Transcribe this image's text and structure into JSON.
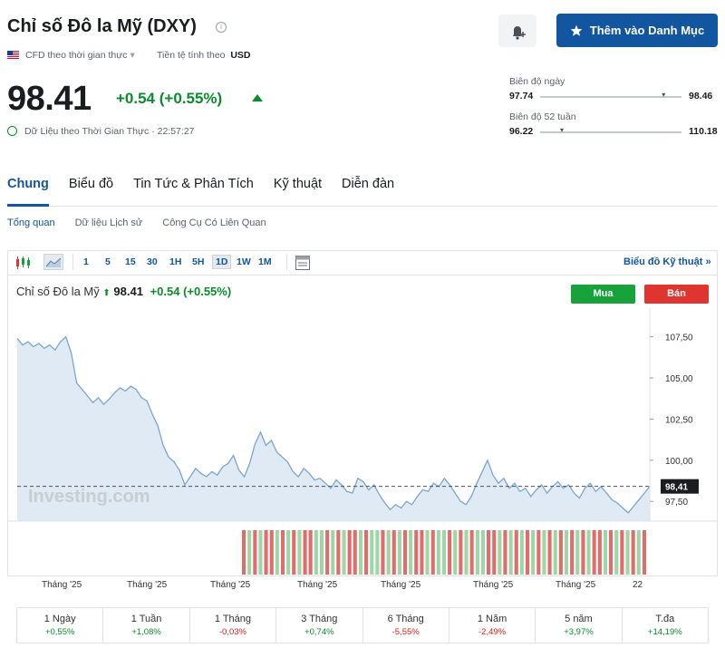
{
  "header": {
    "title": "Chỉ số Đô la Mỹ (DXY)",
    "info_icon": "info-icon",
    "alert_icon": "bell-plus-icon",
    "watchlist_label": "Thêm vào Danh Mục",
    "data_source": "CFD theo thời gian thực",
    "currency_label": "Tiền tệ tính theo",
    "currency": "USD"
  },
  "quote": {
    "price": "98.41",
    "change": "+0.54 (+0.55%)",
    "realtime_label": "Dữ Liệu theo Thời Gian Thực · 22:57:27"
  },
  "ranges": {
    "day_label": "Biên độ ngày",
    "day_low": "97.74",
    "day_high": "98.46",
    "day_position": 0.88,
    "week52_label": "Biên độ 52 tuần",
    "week52_low": "96.22",
    "week52_high": "110.18",
    "week52_position": 0.16
  },
  "tabs": [
    "Chung",
    "Biểu đồ",
    "Tin Tức & Phân Tích",
    "Kỹ thuật",
    "Diễn đàn"
  ],
  "subtabs": [
    "Tổng quan",
    "Dữ liệu Lịch sử",
    "Công Cụ Có Liên Quan"
  ],
  "chart_toolbar": {
    "timeframes": [
      "1",
      "5",
      "15",
      "30",
      "1H",
      "5H",
      "1D",
      "1W",
      "1M"
    ],
    "selected": "1D",
    "tech_chart_link": "Biểu đồ Kỹ thuật »"
  },
  "chart_header": {
    "name": "Chỉ số Đô la Mỹ",
    "price": "98.41",
    "change": "+0.54 (+0.55%)",
    "buy_label": "Mua",
    "sell_label": "Bán",
    "watermark": "Investing.com"
  },
  "chart_data": {
    "type": "area",
    "ylim": [
      96.3,
      108.8
    ],
    "yticks": [
      "107,50",
      "105,00",
      "102,50",
      "100,00",
      "97,50"
    ],
    "last_label": "98,41",
    "last_value": 98.41,
    "xlabels": [
      "Tháng '25",
      "Tháng '25",
      "Tháng '25",
      "Tháng '25",
      "Tháng '25",
      "Tháng '25",
      "Tháng '25",
      "22"
    ],
    "values": [
      107.4,
      107.0,
      107.2,
      106.9,
      107.1,
      106.8,
      107.0,
      106.7,
      107.2,
      107.5,
      106.5,
      104.7,
      104.3,
      103.9,
      103.5,
      103.8,
      103.4,
      103.7,
      104.1,
      104.4,
      104.2,
      104.5,
      104.3,
      103.8,
      103.6,
      102.8,
      102.1,
      100.9,
      100.2,
      99.9,
      99.4,
      98.5,
      99.0,
      99.5,
      99.2,
      99.0,
      99.3,
      99.1,
      99.6,
      99.8,
      100.3,
      99.4,
      99.0,
      99.8,
      101.0,
      101.7,
      100.9,
      101.2,
      100.5,
      100.2,
      99.9,
      99.3,
      99.0,
      99.5,
      99.2,
      98.8,
      98.9,
      98.6,
      98.3,
      98.8,
      98.5,
      98.1,
      98.0,
      98.9,
      98.7,
      98.2,
      98.5,
      97.9,
      97.4,
      97.0,
      97.3,
      97.1,
      97.5,
      97.3,
      97.8,
      98.2,
      98.1,
      98.6,
      98.4,
      98.9,
      98.5,
      98.0,
      97.5,
      97.3,
      97.8,
      98.6,
      99.3,
      100.0,
      99.1,
      98.6,
      98.9,
      98.3,
      98.6,
      98.1,
      98.3,
      97.8,
      98.2,
      98.5,
      98.0,
      98.4,
      98.7,
      98.3,
      98.5,
      98.0,
      97.7,
      98.3,
      98.6,
      98.1,
      98.4,
      98.0,
      97.6,
      97.4,
      97.1,
      96.8,
      97.2,
      97.6,
      98.0,
      98.41
    ],
    "volume_pattern": [
      "r",
      "g",
      "r",
      "g",
      "r",
      "r",
      "g",
      "r",
      "g",
      "r",
      "g",
      "r",
      "r",
      "g",
      "g",
      "r",
      "g",
      "r",
      "g",
      "r",
      "r",
      "g",
      "r",
      "g",
      "g",
      "r",
      "g",
      "r",
      "g",
      "r",
      "g",
      "r",
      "r",
      "g",
      "r",
      "g",
      "g",
      "r",
      "g",
      "r",
      "g",
      "r",
      "g",
      "g",
      "r",
      "r",
      "g",
      "r",
      "g",
      "r",
      "g",
      "r",
      "g",
      "r",
      "g",
      "r",
      "g",
      "r",
      "g",
      "r",
      "g",
      "r",
      "g",
      "r",
      "r",
      "g",
      "r",
      "g",
      "r",
      "g",
      "r",
      "g",
      "r"
    ],
    "grid": false
  },
  "performance": [
    {
      "label": "1 Ngày",
      "value": "+0,55%",
      "dir": "pos"
    },
    {
      "label": "1 Tuần",
      "value": "+1,08%",
      "dir": "pos"
    },
    {
      "label": "1 Tháng",
      "value": "-0,03%",
      "dir": "neg"
    },
    {
      "label": "3 Tháng",
      "value": "+0,74%",
      "dir": "pos"
    },
    {
      "label": "6 Tháng",
      "value": "-5,55%",
      "dir": "neg"
    },
    {
      "label": "1 Năm",
      "value": "-2,49%",
      "dir": "neg"
    },
    {
      "label": "5 năm",
      "value": "+3,97%",
      "dir": "pos"
    },
    {
      "label": "T.đa",
      "value": "+14,19%",
      "dir": "pos"
    }
  ],
  "colors": {
    "accent": "#1256a0",
    "up": "#0a8c2c",
    "down": "#d91e18",
    "area_line": "#7aa5cf",
    "area_fill": "#dfeaf4",
    "vol_red": "#e06c6c",
    "vol_green": "#9fd6a7"
  }
}
